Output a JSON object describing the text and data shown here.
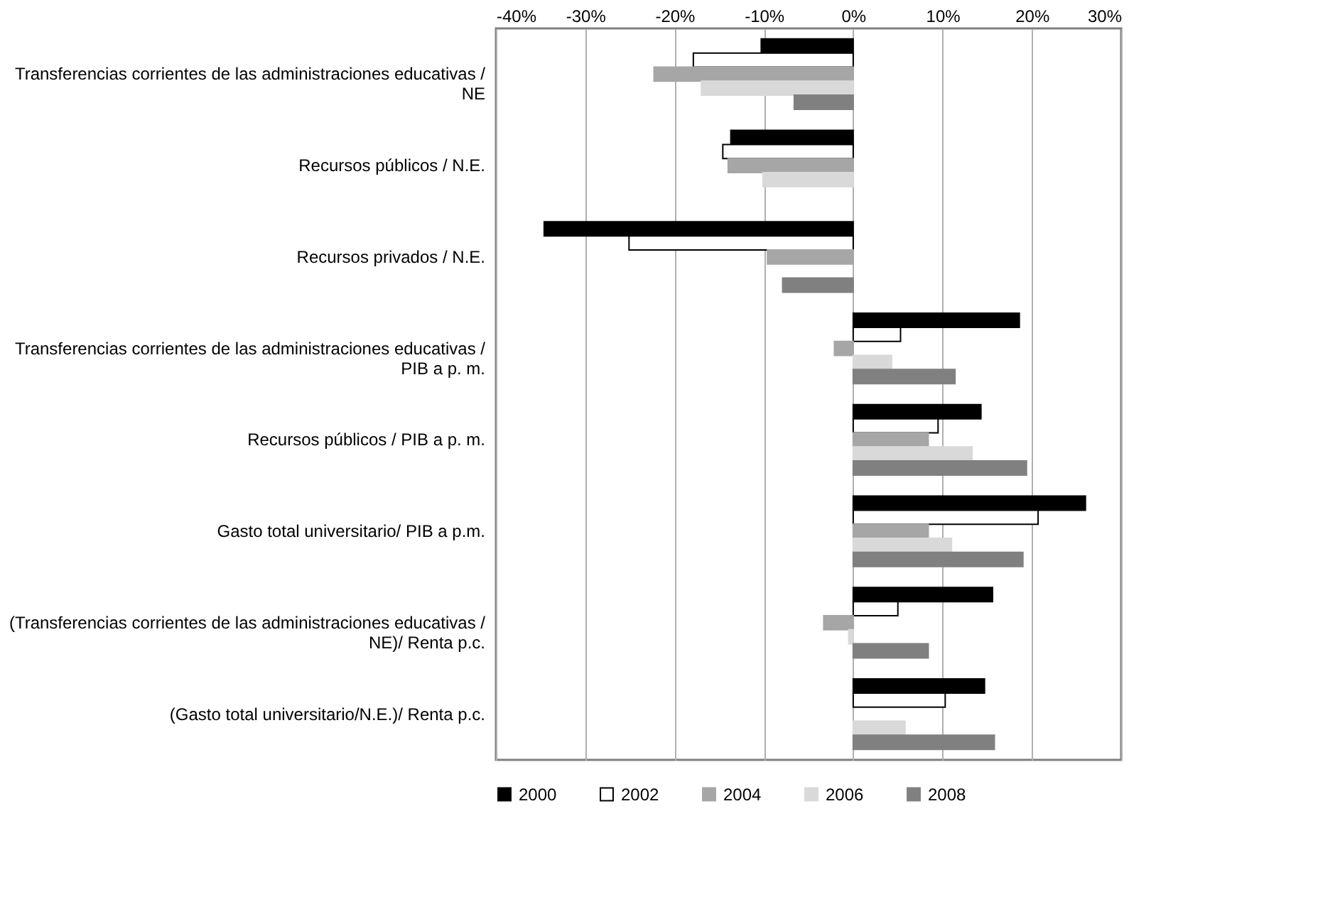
{
  "chart_data": {
    "type": "bar",
    "orientation": "horizontal",
    "categories": [
      "Transferencias corrientes de las administraciones educativas / NE",
      "Recursos públicos / N.E.",
      "Recursos privados / N.E.",
      "Transferencias corrientes de las administraciones educativas / PIB a p. m.",
      "Recursos públicos / PIB a p. m.",
      "Gasto total universitario/ PIB a p.m.",
      "(Transferencias corrientes de las administraciones educativas / NE)/ Renta p.c.",
      "(Gasto total universitario/N.E.)/ Renta p.c."
    ],
    "series": [
      {
        "name": "2000",
        "color": "#000000",
        "values": [
          -10.3,
          -13.7,
          -34.6,
          18.6,
          14.3,
          26.0,
          15.6,
          14.7
        ]
      },
      {
        "name": "2002",
        "color": "#ffffff",
        "values": [
          -17.9,
          -14.6,
          -25.1,
          5.3,
          9.5,
          20.7,
          5.0,
          10.3
        ]
      },
      {
        "name": "2004",
        "color": "#a6a6a6",
        "values": [
          -22.3,
          -14.0,
          -9.6,
          -2.1,
          8.4,
          8.4,
          -3.3,
          null
        ]
      },
      {
        "name": "2006",
        "color": "#d9d9d9",
        "values": [
          -17.0,
          -10.1,
          null,
          4.3,
          13.3,
          11.0,
          -0.5,
          5.8
        ]
      },
      {
        "name": "2008",
        "color": "#808080",
        "values": [
          -6.6,
          null,
          -7.9,
          11.4,
          19.4,
          19.0,
          8.4,
          15.8
        ]
      }
    ],
    "xlim": [
      -40,
      30
    ],
    "xticks": [
      {
        "value": -40,
        "label": "-40%"
      },
      {
        "value": -30,
        "label": "-30%"
      },
      {
        "value": -20,
        "label": "-20%"
      },
      {
        "value": -10,
        "label": "-10%"
      },
      {
        "value": 0,
        "label": "0%"
      },
      {
        "value": 10,
        "label": "10%"
      },
      {
        "value": 20,
        "label": "20%"
      },
      {
        "value": 30,
        "label": "30%"
      }
    ],
    "grid": "x",
    "legend": "bottom"
  }
}
